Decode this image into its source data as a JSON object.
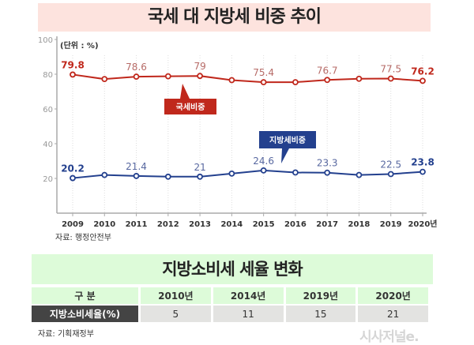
{
  "title": "국세 대 지방세 비중 추이",
  "chart_data": {
    "type": "line",
    "title": "국세 대 지방세 비중 추이",
    "unit_label": "(단위 : %)",
    "categories": [
      "2009",
      "2010",
      "2011",
      "2012",
      "2013",
      "2014",
      "2015",
      "2016",
      "2017",
      "2018",
      "2019",
      "2020년"
    ],
    "ylim": [
      0,
      100
    ],
    "yticks": [
      20,
      40,
      60,
      80,
      100
    ],
    "grid": "vertical dotted",
    "series": [
      {
        "name": "국세비중",
        "color": "#c0281c",
        "values": [
          79.8,
          77.2,
          78.6,
          78.8,
          79,
          76.6,
          75.4,
          75.4,
          76.7,
          77.4,
          77.5,
          76.2
        ],
        "labels": [
          "79.8",
          "",
          "78.6",
          "",
          "79",
          "",
          "75.4",
          "",
          "76.7",
          "",
          "77.5",
          "76.2"
        ]
      },
      {
        "name": "지방세비중",
        "color": "#23408e",
        "values": [
          20.2,
          22,
          21.4,
          21,
          21,
          22.8,
          24.6,
          23.4,
          23.3,
          22,
          22.5,
          23.8
        ],
        "labels": [
          "20.2",
          "",
          "21.4",
          "",
          "21",
          "",
          "24.6",
          "",
          "23.3",
          "",
          "22.5",
          "23.8"
        ]
      }
    ]
  },
  "source1": "자료: 행정안전부",
  "table": {
    "title": "지방소비세 세율 변화",
    "headers": [
      "구 분",
      "2010년",
      "2014년",
      "2019년",
      "2020년"
    ],
    "row_label": "지방소비세율(%)",
    "values": [
      "5",
      "11",
      "15",
      "21"
    ]
  },
  "source2": "자료: 기획재정부",
  "logo": "시사저널e."
}
